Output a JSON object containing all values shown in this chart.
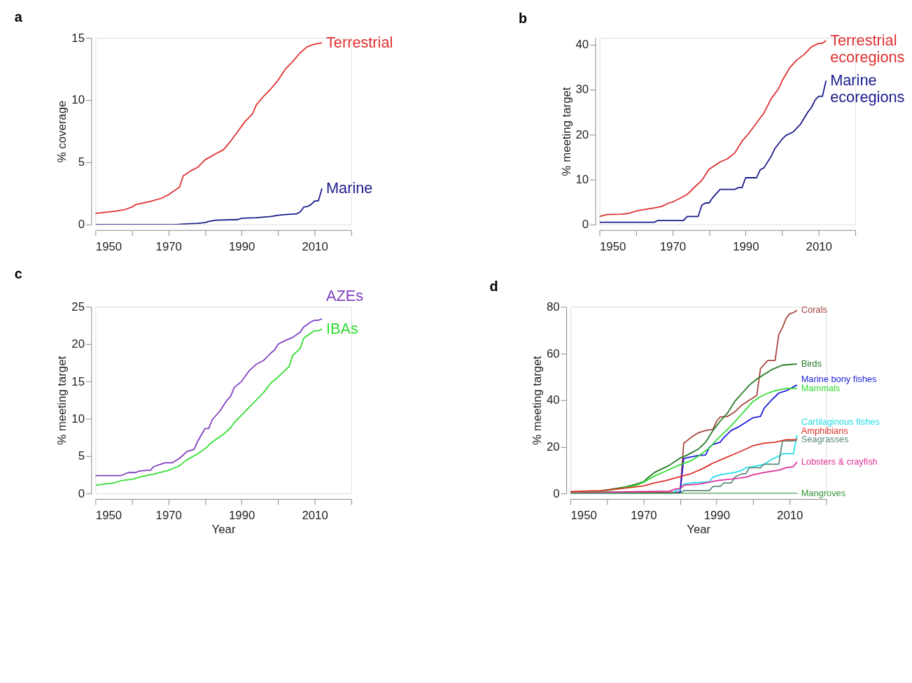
{
  "chart_data": [
    {
      "type": "line",
      "title": "a",
      "ylabel": "% coverage",
      "xlim": [
        1950,
        2020
      ],
      "xticks": [
        1950,
        {
          "value": 1960,
          "label": null
        },
        1970,
        {
          "value": 1980,
          "label": null
        },
        1990,
        {
          "value": 2000,
          "label": null
        },
        2010,
        {
          "value": 2020,
          "label": null
        }
      ],
      "ylim": [
        0,
        15
      ],
      "yticks": [
        0,
        5,
        10,
        15
      ],
      "series": [
        {
          "name": "Terrestrial",
          "color": "#e03030",
          "x": [
            1950,
            1955,
            1958,
            1960,
            1961,
            1965,
            1968,
            1970,
            1972,
            1973,
            1974,
            1976,
            1978,
            1980,
            1983,
            1985,
            1987,
            1989,
            1990,
            1991,
            1993,
            1994,
            1996,
            1998,
            2000,
            2002,
            2004,
            2006,
            2008,
            2009,
            2010,
            2012
          ],
          "values": [
            0.9,
            1.05,
            1.2,
            1.4,
            1.6,
            1.85,
            2.1,
            2.4,
            2.8,
            3.0,
            3.9,
            4.3,
            4.6,
            5.2,
            5.7,
            6.0,
            6.7,
            7.5,
            7.9,
            8.3,
            8.9,
            9.6,
            10.3,
            10.9,
            11.6,
            12.5,
            13.1,
            13.8,
            14.3,
            14.4,
            14.5,
            14.6
          ]
        },
        {
          "name": "Marine",
          "color": "#1a1a8c",
          "x": [
            1950,
            1972,
            1975,
            1978,
            1980,
            1981,
            1983,
            1989,
            1990,
            1994,
            1998,
            2000,
            2002,
            2005,
            2006,
            2007,
            2008,
            2009,
            2010,
            2011,
            2012
          ],
          "values": [
            0,
            0,
            0.05,
            0.1,
            0.15,
            0.25,
            0.35,
            0.4,
            0.5,
            0.55,
            0.65,
            0.75,
            0.8,
            0.85,
            1.0,
            1.4,
            1.45,
            1.6,
            1.9,
            1.9,
            2.9
          ]
        }
      ]
    },
    {
      "type": "line",
      "title": "b",
      "ylabel": "% meeting target",
      "xlim": [
        1950,
        2020
      ],
      "xticks": [
        1950,
        {
          "value": 1960,
          "label": null
        },
        1970,
        {
          "value": 1980,
          "label": null
        },
        1990,
        {
          "value": 2000,
          "label": null
        },
        2010,
        {
          "value": 2020,
          "label": null
        }
      ],
      "ylim": [
        0,
        41.5
      ],
      "yticks": [
        0,
        10,
        20,
        30,
        40
      ],
      "series": [
        {
          "name": "Terrestrial ecoregions",
          "color": "#e03030",
          "x": [
            1950,
            1952,
            1956,
            1958,
            1960,
            1962,
            1965,
            1967,
            1969,
            1970,
            1972,
            1974,
            1976,
            1978,
            1980,
            1983,
            1985,
            1987,
            1989,
            1991,
            1993,
            1995,
            1997,
            1999,
            2000,
            2002,
            2004,
            2006,
            2008,
            2010,
            2011,
            2012
          ],
          "values": [
            1.8,
            2.2,
            2.3,
            2.5,
            3.0,
            3.3,
            3.7,
            4.0,
            4.8,
            5.0,
            5.8,
            6.7,
            8.3,
            9.8,
            12.3,
            13.9,
            14.6,
            15.9,
            18.5,
            20.4,
            22.6,
            24.8,
            28.0,
            30.2,
            32.0,
            34.8,
            36.6,
            37.8,
            39.5,
            40.3,
            40.3,
            40.9
          ]
        },
        {
          "name": "Marine ecoregions",
          "color": "#1a1a8c",
          "x": [
            1950,
            1965,
            1966,
            1973,
            1974,
            1977,
            1978,
            1979,
            1980,
            1981,
            1983,
            1987,
            1988,
            1989,
            1990,
            1993,
            1994,
            1995,
            1997,
            1998,
            2000,
            2001,
            2003,
            2005,
            2007,
            2008,
            2009,
            2010,
            2011,
            2012
          ],
          "values": [
            0.5,
            0.5,
            0.9,
            0.9,
            1.8,
            1.8,
            4.3,
            4.8,
            4.8,
            6.0,
            7.8,
            7.8,
            8.2,
            8.2,
            10.4,
            10.4,
            12.2,
            12.6,
            15.2,
            16.9,
            19.0,
            19.8,
            20.6,
            22.3,
            25.0,
            26.0,
            27.7,
            28.5,
            28.5,
            32.0
          ]
        }
      ]
    },
    {
      "type": "line",
      "title": "c",
      "xlabel": "Year",
      "ylabel": "% meeting target",
      "xlim": [
        1950,
        2020
      ],
      "xticks": [
        1950,
        {
          "value": 1960,
          "label": null
        },
        1970,
        {
          "value": 1980,
          "label": null
        },
        1990,
        {
          "value": 2000,
          "label": null
        },
        2010,
        {
          "value": 2020,
          "label": null
        }
      ],
      "ylim": [
        0,
        25
      ],
      "yticks": [
        0,
        5,
        10,
        15,
        20,
        25
      ],
      "series": [
        {
          "name": "AZEs",
          "color": "#8040c0",
          "x": [
            1950,
            1957,
            1959,
            1961,
            1962,
            1964,
            1965,
            1966,
            1969,
            1971,
            1973,
            1975,
            1977,
            1978,
            1980,
            1981,
            1982,
            1984,
            1986,
            1987,
            1988,
            1990,
            1992,
            1994,
            1996,
            1998,
            1999,
            2000,
            2002,
            2004,
            2006,
            2007,
            2009,
            2010,
            2011,
            2012
          ],
          "values": [
            2.4,
            2.4,
            2.8,
            2.8,
            3.0,
            3.1,
            3.1,
            3.6,
            4.1,
            4.1,
            4.7,
            5.6,
            5.9,
            7.0,
            8.7,
            8.7,
            9.9,
            11.0,
            12.5,
            13.0,
            14.2,
            15.0,
            16.4,
            17.3,
            17.8,
            18.8,
            19.2,
            20.0,
            20.5,
            20.9,
            21.6,
            22.3,
            23.0,
            23.2,
            23.2,
            23.4
          ]
        },
        {
          "name": "IBAs",
          "color": "#33dd33",
          "x": [
            1950,
            1955,
            1957,
            1960,
            1963,
            1966,
            1970,
            1972,
            1973,
            1975,
            1978,
            1980,
            1982,
            1985,
            1987,
            1988,
            1990,
            1992,
            1994,
            1996,
            1998,
            2000,
            2003,
            2004,
            2006,
            2007,
            2009,
            2010,
            2011,
            2012
          ],
          "values": [
            1.1,
            1.4,
            1.7,
            1.9,
            2.3,
            2.6,
            3.1,
            3.5,
            3.7,
            4.5,
            5.3,
            6.0,
            6.9,
            7.9,
            8.8,
            9.5,
            10.5,
            11.5,
            12.5,
            13.5,
            14.8,
            15.6,
            17.0,
            18.5,
            19.4,
            20.8,
            21.5,
            21.8,
            21.8,
            22.0
          ]
        }
      ]
    },
    {
      "type": "line",
      "title": "d",
      "xlabel": "Year",
      "ylabel": "% meeting target",
      "xlim": [
        1950,
        2020
      ],
      "xticks": [
        1950,
        {
          "value": 1960,
          "label": null
        },
        1970,
        {
          "value": 1980,
          "label": null
        },
        1990,
        {
          "value": 2000,
          "label": null
        },
        2010,
        {
          "value": 2020,
          "label": null
        }
      ],
      "ylim": [
        0,
        80
      ],
      "yticks": [
        0,
        20,
        40,
        60,
        80
      ],
      "series": [
        {
          "name": "Corals",
          "color": "#a84440",
          "x": [
            1950,
            1980,
            1981,
            1983,
            1985,
            1987,
            1989,
            1990,
            1991,
            1993,
            1995,
            1997,
            1999,
            2001,
            2002,
            2004,
            2006,
            2007,
            2008,
            2009,
            2010,
            2011,
            2012
          ],
          "values": [
            0.5,
            0.5,
            21.5,
            24,
            26,
            27,
            27.5,
            31,
            32.8,
            33,
            35,
            38,
            40,
            42,
            53.5,
            57,
            57,
            68,
            71,
            75,
            77,
            77.5,
            78.5
          ]
        },
        {
          "name": "Birds",
          "color": "#237a23",
          "x": [
            1950,
            1958,
            1962,
            1965,
            1968,
            1970,
            1971,
            1973,
            1975,
            1977,
            1980,
            1982,
            1985,
            1987,
            1989,
            1991,
            1993,
            1995,
            1997,
            1999,
            2001,
            2003,
            2005,
            2008,
            2012
          ],
          "values": [
            0.5,
            1.0,
            2,
            2.8,
            4,
            5,
            6.5,
            9,
            10.5,
            12,
            15.2,
            16.5,
            19,
            22,
            27,
            31,
            34.5,
            39.5,
            43,
            46.5,
            49,
            51,
            53,
            55,
            55.5
          ]
        },
        {
          "name": "Marine bony fishes",
          "color": "#1a1adb",
          "x": [
            1950,
            1978,
            1979,
            1980,
            1981,
            1985,
            1987,
            1988,
            1989,
            1991,
            1992,
            1994,
            1996,
            1998,
            2000,
            2002,
            2003,
            2005,
            2007,
            2009,
            2012
          ],
          "values": [
            0,
            0,
            0.3,
            0.3,
            15,
            16.3,
            16.5,
            19.8,
            21,
            22,
            24,
            27,
            28.5,
            30.5,
            32.5,
            33,
            36.5,
            40,
            43,
            44,
            46.5
          ]
        },
        {
          "name": "Mammals",
          "color": "#33dd33",
          "x": [
            1950,
            1960,
            1965,
            1968,
            1970,
            1973,
            1976,
            1980,
            1983,
            1985,
            1988,
            1990,
            1992,
            1994,
            1996,
            1998,
            2000,
            2002,
            2004,
            2006,
            2009,
            2012
          ],
          "values": [
            0.3,
            1.2,
            2.5,
            3.5,
            4.8,
            7.5,
            9.5,
            12.3,
            14,
            16,
            19.5,
            23,
            26,
            29,
            32.5,
            36,
            39.5,
            41.5,
            43,
            44,
            45,
            45
          ]
        },
        {
          "name": "Cartilaginous fishes",
          "color": "#22dde8",
          "x": [
            1950,
            1978,
            1979,
            1980,
            1981,
            1983,
            1988,
            1989,
            1991,
            1995,
            1997,
            1998,
            2000,
            2003,
            2005,
            2007,
            2008,
            2011,
            2012
          ],
          "values": [
            0,
            0,
            1.5,
            1.5,
            4,
            4.5,
            5,
            7,
            8,
            9,
            10,
            11,
            11.5,
            12.5,
            14.5,
            16,
            17,
            17,
            25
          ]
        },
        {
          "name": "Seagrasses",
          "color": "#5a8a7a",
          "x": [
            1950,
            1980,
            1981,
            1988,
            1989,
            1991,
            1992,
            1994,
            1995,
            1997,
            1998,
            1999,
            2002,
            2003,
            2007,
            2008,
            2011,
            2012
          ],
          "values": [
            0,
            0,
            1.2,
            1.2,
            3,
            3,
            4.5,
            4.5,
            7,
            8.5,
            8.5,
            11,
            11,
            12.5,
            12.5,
            22.5,
            22.5,
            23
          ]
        },
        {
          "name": "Amphibians",
          "color": "#e0302a",
          "x": [
            1950,
            1958,
            1962,
            1966,
            1970,
            1973,
            1976,
            1980,
            1983,
            1986,
            1989,
            1992,
            1995,
            1998,
            2000,
            2003,
            2006,
            2009,
            2012
          ],
          "values": [
            0.8,
            1.2,
            1.8,
            2.5,
            3.2,
            4.5,
            5.5,
            7.2,
            8.5,
            10.5,
            13,
            15,
            17,
            19,
            20.5,
            21.5,
            22,
            23,
            23
          ]
        },
        {
          "name": "Lobsters & crayfish",
          "color": "#e0309a",
          "x": [
            1950,
            1960,
            1970,
            1977,
            1979,
            1980,
            1981,
            1985,
            1988,
            1990,
            1993,
            1996,
            1998,
            2000,
            2003,
            2007,
            2009,
            2011,
            2012
          ],
          "values": [
            0.2,
            0.5,
            0.8,
            1.0,
            2.0,
            2.0,
            3.5,
            4,
            4.8,
            5.5,
            6,
            6.5,
            7,
            8,
            9,
            10,
            11,
            11.5,
            13.5
          ]
        },
        {
          "name": "Mangroves",
          "color": "#3a9a3a",
          "x": [
            1950,
            2012
          ],
          "values": [
            0,
            0
          ]
        }
      ]
    }
  ]
}
